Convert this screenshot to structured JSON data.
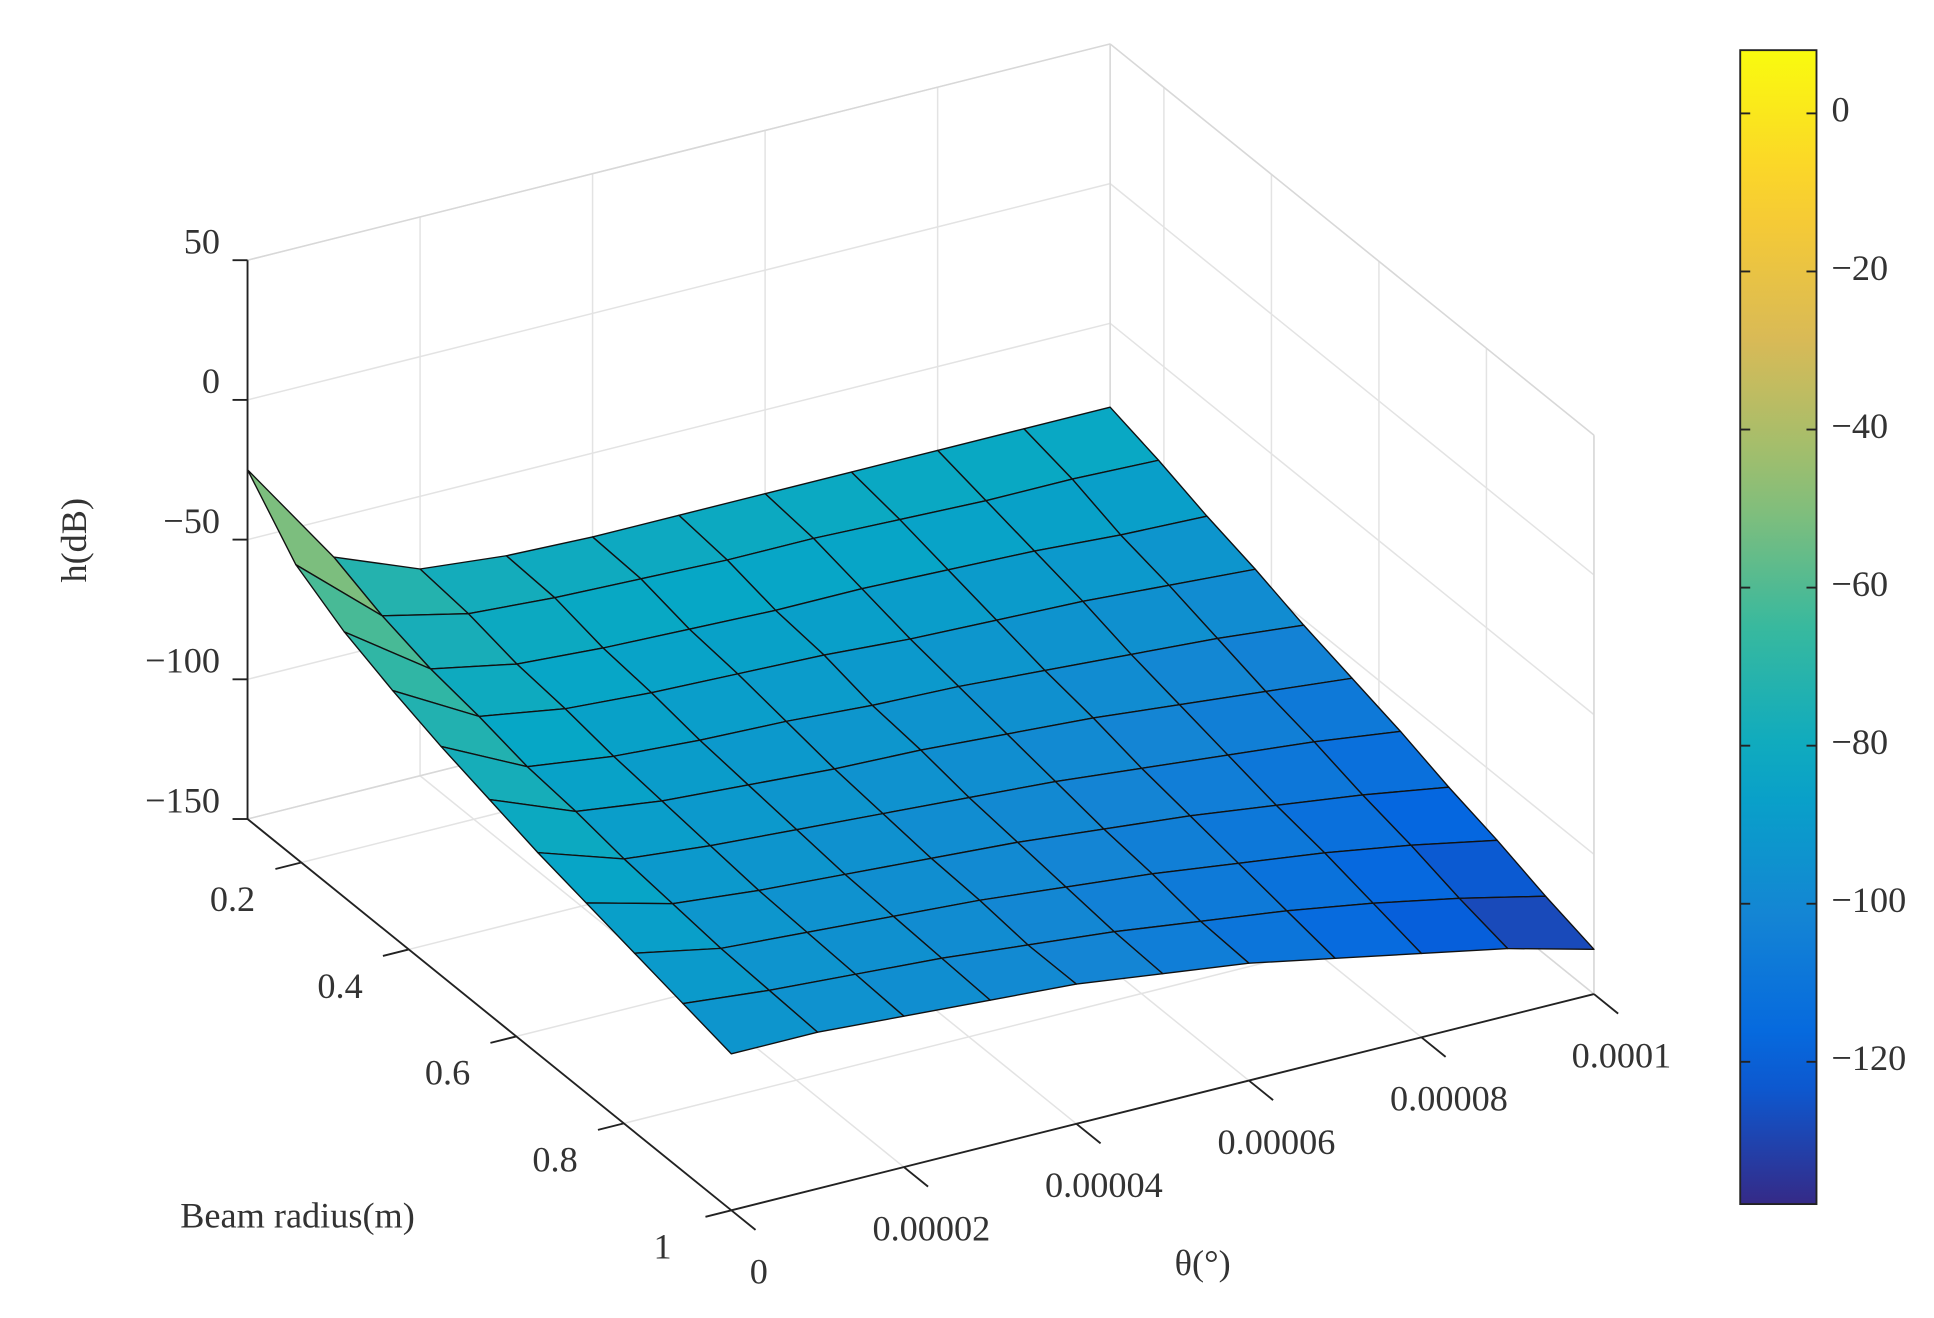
{
  "chart_data": {
    "type": "surface",
    "xlabel": "θ(°)",
    "ylabel": "Beam radius(m)",
    "zlabel": "h(dB)",
    "x": [
      0,
      1e-05,
      2e-05,
      3e-05,
      4e-05,
      5e-05,
      6e-05,
      7e-05,
      8e-05,
      9e-05,
      0.0001
    ],
    "y": [
      0.1,
      0.19,
      0.28,
      0.37,
      0.46,
      0.55,
      0.64,
      0.73,
      0.82,
      0.91,
      1
    ],
    "z": [
      [
        -25,
        -64,
        -76,
        -79,
        -80,
        -80,
        -80,
        -80,
        -80,
        -80,
        -80
      ],
      [
        -45,
        -71,
        -78,
        -80,
        -81,
        -82,
        -82,
        -83,
        -84,
        -84,
        -85
      ],
      [
        -55,
        -76,
        -82,
        -84,
        -85,
        -86,
        -86,
        -87,
        -88,
        -90,
        -91
      ],
      [
        -62,
        -79,
        -84,
        -86,
        -87,
        -88,
        -90,
        -91,
        -92,
        -94,
        -96
      ],
      [
        -68,
        -83,
        -87,
        -89,
        -90,
        -92,
        -93,
        -95,
        -97,
        -99,
        -102
      ],
      [
        -73,
        -85,
        -89,
        -91,
        -93,
        -94,
        -96,
        -98,
        -101,
        -104,
        -107
      ],
      [
        -78,
        -88,
        -91,
        -93,
        -95,
        -97,
        -99,
        -102,
        -105,
        -108,
        -112
      ],
      [
        -82,
        -90,
        -93,
        -95,
        -97,
        -99,
        -102,
        -105,
        -109,
        -113,
        -118
      ],
      [
        -86,
        -92,
        -94,
        -96,
        -98,
        -101,
        -104,
        -108,
        -112,
        -117,
        -123
      ],
      [
        -90,
        -93,
        -95,
        -97,
        -100,
        -103,
        -107,
        -111,
        -116,
        -122,
        -129
      ],
      [
        -94,
        -94,
        -96,
        -98,
        -100,
        -104,
        -108,
        -114,
        -120,
        -126,
        -134
      ]
    ],
    "xlim": [
      0,
      0.0001
    ],
    "ylim": [
      0.1,
      1
    ],
    "zlim": [
      -150,
      50
    ],
    "xticks": [
      0,
      2e-05,
      4e-05,
      6e-05,
      8e-05,
      0.0001
    ],
    "yticks": [
      0.2,
      0.4,
      0.6,
      0.8,
      1
    ],
    "zticks": [
      {
        "value": -150,
        "label": "−150"
      },
      {
        "value": -100,
        "label": "−100"
      },
      {
        "value": -50,
        "label": "−50"
      },
      0,
      50
    ],
    "grid": true,
    "colorbar": {
      "colormap": "parula",
      "clim": [
        -138,
        8
      ],
      "ticks": [
        {
          "value": -120,
          "label": "−120"
        },
        {
          "value": -100,
          "label": "−100"
        },
        {
          "value": -80,
          "label": "−80"
        },
        {
          "value": -60,
          "label": "−60"
        },
        {
          "value": -40,
          "label": "−40"
        },
        {
          "value": -20,
          "label": "−20"
        },
        0
      ]
    }
  }
}
